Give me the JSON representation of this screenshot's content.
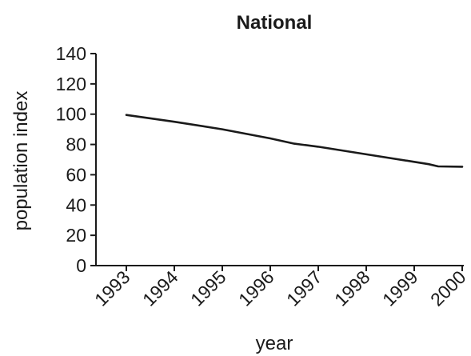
{
  "chart_data": {
    "type": "line",
    "title": "National",
    "xlabel": "year",
    "ylabel": "population index",
    "x_categories": [
      "1993",
      "1994",
      "1995",
      "1996",
      "1997",
      "1998",
      "1999",
      "2000"
    ],
    "y_ticks": [
      "0",
      "20",
      "40",
      "60",
      "80",
      "100",
      "120",
      "140"
    ],
    "ylim": [
      0,
      140
    ],
    "grid": false,
    "legend": "none",
    "series": [
      {
        "points": [
          {
            "x": 1993.0,
            "y": 99.5
          },
          {
            "x": 1994.0,
            "y": 95.0
          },
          {
            "x": 1995.0,
            "y": 90.0
          },
          {
            "x": 1996.0,
            "y": 84.0
          },
          {
            "x": 1996.5,
            "y": 80.5
          },
          {
            "x": 1997.0,
            "y": 78.5
          },
          {
            "x": 1998.0,
            "y": 73.5
          },
          {
            "x": 1999.0,
            "y": 68.5
          },
          {
            "x": 1999.3,
            "y": 67.0
          },
          {
            "x": 1999.5,
            "y": 65.5
          },
          {
            "x": 2000.0,
            "y": 65.3
          }
        ]
      }
    ],
    "colors": {
      "line": "#1a1a1a",
      "axis": "#1a1a1a",
      "text": "#1a1a1a"
    }
  }
}
